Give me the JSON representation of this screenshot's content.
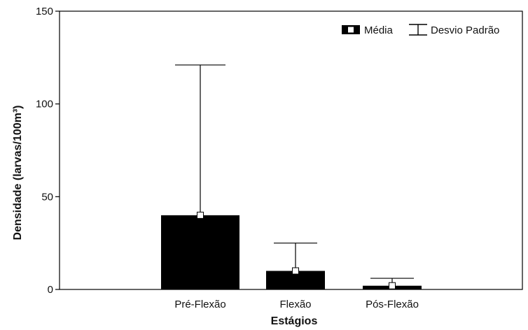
{
  "chart_data": {
    "type": "bar",
    "title": "",
    "xlabel": "Estágios",
    "ylabel": "Densidade (larvas/100m³)",
    "categories": [
      "Pré-Flexão",
      "Flexão",
      "Pós-Flexão"
    ],
    "series": [
      {
        "name": "Média",
        "values": [
          40,
          10,
          2
        ]
      },
      {
        "name": "Desvio Padrão",
        "values": [
          81,
          15,
          4
        ]
      }
    ],
    "ylim": [
      0,
      150
    ],
    "yticks": [
      0,
      50,
      100,
      150
    ],
    "ytick_labels": [
      "0",
      "50",
      "100",
      "150"
    ],
    "grid": false,
    "legend_position": "top-right",
    "bar_color": "#000000",
    "marker_color": "#ffffff"
  }
}
